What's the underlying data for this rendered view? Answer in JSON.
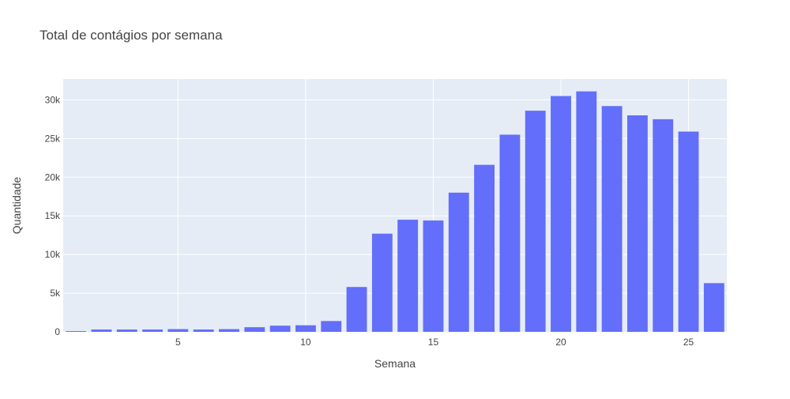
{
  "chart_data": {
    "type": "bar",
    "title": "Total de contágios por semana",
    "xlabel": "Semana",
    "ylabel": "Quantidade",
    "x": [
      1,
      2,
      3,
      4,
      5,
      6,
      7,
      8,
      9,
      10,
      11,
      12,
      13,
      14,
      15,
      16,
      17,
      18,
      19,
      20,
      21,
      22,
      23,
      24,
      25,
      26
    ],
    "values": [
      100,
      300,
      300,
      300,
      350,
      300,
      350,
      600,
      800,
      850,
      1400,
      5800,
      12700,
      14500,
      14400,
      18000,
      21600,
      25500,
      28600,
      30500,
      31100,
      29200,
      28000,
      27500,
      25900,
      6300
    ],
    "xlim": [
      0.5,
      26.5
    ],
    "ylim": [
      0,
      32700
    ],
    "x_ticks": [
      5,
      10,
      15,
      20,
      25
    ],
    "x_tick_labels": [
      "5",
      "10",
      "15",
      "20",
      "25"
    ],
    "y_ticks": [
      0,
      5000,
      10000,
      15000,
      20000,
      25000,
      30000
    ],
    "y_tick_labels": [
      "0",
      "5k",
      "10k",
      "15k",
      "20k",
      "25k",
      "30k"
    ],
    "grid": true,
    "bar_color": "#636efa",
    "plot_bgcolor": "#e5ecf6",
    "grid_color": "#ffffff"
  }
}
